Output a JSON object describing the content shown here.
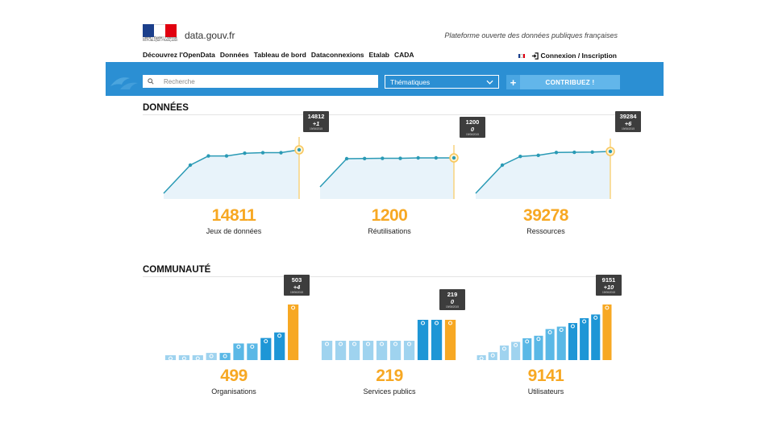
{
  "header": {
    "site_name": "data.gouv.fr",
    "tagline": "Plateforme ouverte des données publiques françaises",
    "logo_motto": "Liberté • Égalité • Fraternité RÉPUBLIQUE FRANÇAISE",
    "nav": [
      "Découvrez l'OpenData",
      "Données",
      "Tableau de bord",
      "Dataconnexions",
      "Etalab",
      "CADA"
    ],
    "login_label": "Connexion / Inscription"
  },
  "search": {
    "placeholder": "Recherche",
    "topic_select": "Thématiques",
    "contribute_label": "CONTRIBUEZ !"
  },
  "sections": {
    "data_title": "DONNÉES",
    "community_title": "COMMUNAUTÉ"
  },
  "stats": {
    "datasets": {
      "value": "14811",
      "label": "Jeux de données"
    },
    "reuses": {
      "value": "1200",
      "label": "Réutilisations"
    },
    "resources": {
      "value": "39278",
      "label": "Ressources"
    },
    "organizations": {
      "value": "499",
      "label": "Organisations"
    },
    "public_services": {
      "value": "219",
      "label": "Services publics"
    },
    "users": {
      "value": "9141",
      "label": "Utilisateurs"
    }
  },
  "tooltips": {
    "datasets": {
      "value": "14812",
      "delta": "+1",
      "date": "19/06/2015"
    },
    "reuses": {
      "value": "1200",
      "delta": "0",
      "date": "19/06/2015"
    },
    "resources": {
      "value": "39284",
      "delta": "+6",
      "date": "19/06/2015"
    },
    "organizations": {
      "value": "503",
      "delta": "+4",
      "date": "19/06/2015"
    },
    "public_services": {
      "value": "219",
      "delta": "0",
      "date": "19/06/2015"
    },
    "users": {
      "value": "9151",
      "delta": "+10",
      "date": "19/06/2015"
    }
  },
  "colors": {
    "brand_blue": "#2b8fd3",
    "line": "#2a9ab5",
    "area": "#e8f3fa",
    "highlight": "#f7a823",
    "bar_light": "#9fd3ef",
    "bar_mid": "#5ab8e6",
    "bar_dark": "#1e96d6"
  },
  "chart_data": [
    {
      "type": "area",
      "name": "datasets",
      "values": [
        13400,
        14250,
        14250,
        14500,
        14550,
        14550,
        14812
      ]
    },
    {
      "type": "area",
      "name": "reuses",
      "values": [
        880,
        950,
        1030,
        1030,
        1200,
        1200,
        1200
      ]
    },
    {
      "type": "area",
      "name": "resources",
      "values": [
        33000,
        37000,
        37500,
        38800,
        38900,
        39000,
        39284
      ]
    },
    {
      "type": "bar",
      "name": "organizations",
      "values": [
        20,
        22,
        22,
        65,
        65,
        150,
        150,
        200,
        250,
        503
      ]
    },
    {
      "type": "bar",
      "name": "public_services",
      "values": [
        195,
        195,
        195,
        195,
        195,
        195,
        195,
        219,
        219,
        219
      ]
    },
    {
      "type": "bar",
      "name": "users",
      "values": [
        600,
        1300,
        2400,
        3000,
        3600,
        4000,
        5100,
        5500,
        6100,
        6900,
        7500,
        9151
      ]
    }
  ]
}
